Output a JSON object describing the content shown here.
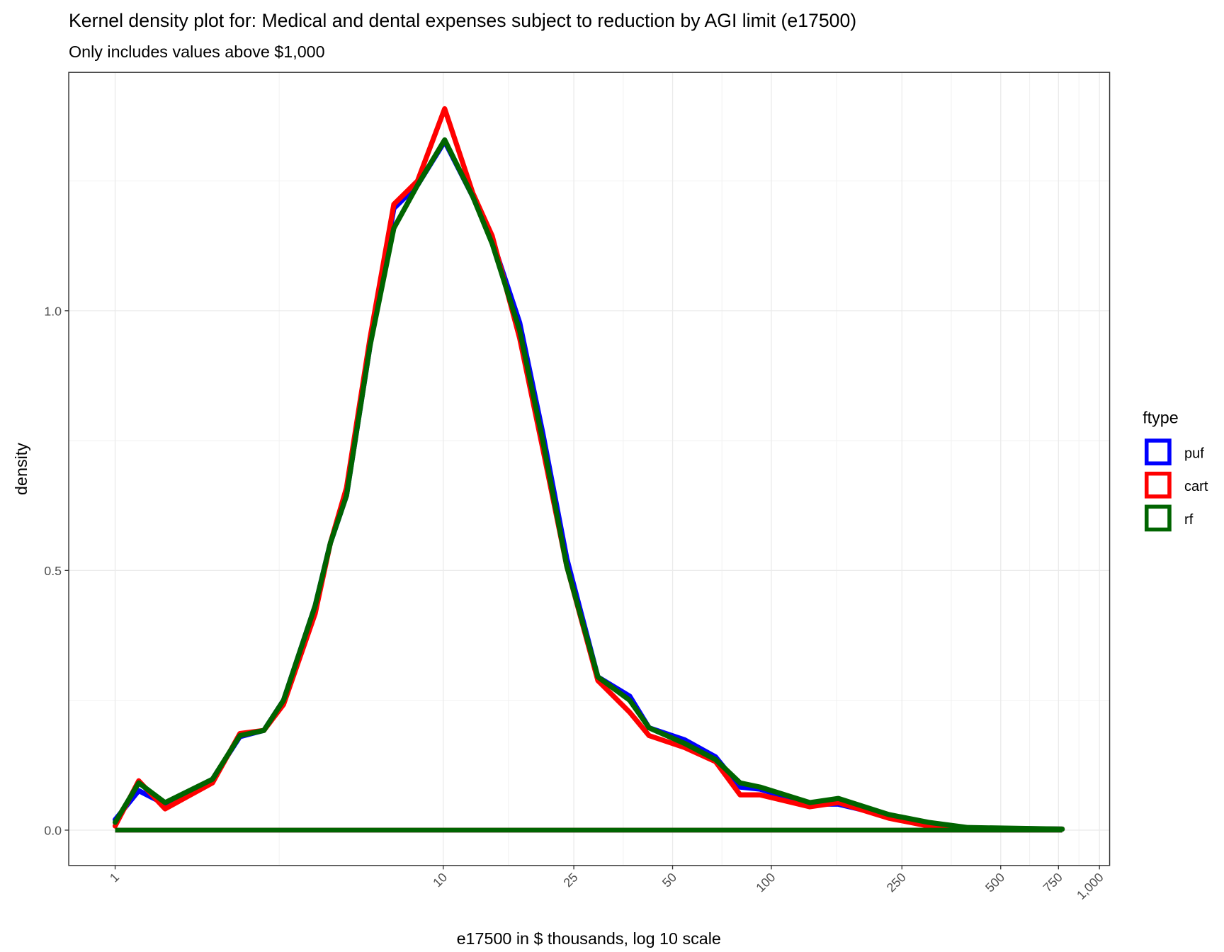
{
  "chart_data": {
    "type": "line",
    "title": "Kernel density plot for: Medical and dental expenses subject to reduction by AGI limit (e17500)",
    "subtitle": "Only includes values above $1,000",
    "x_label": "e17500 in $ thousands, log 10 scale",
    "y_label": "density",
    "x_scale": "log",
    "grid": true,
    "legend_title": "ftype",
    "legend_position": "right",
    "x": [
      1,
      1.18,
      1.42,
      1.98,
      2.4,
      2.84,
      3.26,
      4.07,
      4.53,
      5.07,
      5.98,
      7.07,
      8.35,
      10.1,
      12.3,
      14.1,
      17.1,
      20.1,
      23.8,
      29.6,
      37,
      42.4,
      54.4,
      67.6,
      80.3,
      92.3,
      131,
      160,
      228,
      301,
      397,
      770
    ],
    "series": [
      {
        "name": "puf",
        "color": "#0000ff",
        "values": [
          0.02,
          0.076,
          0.05,
          0.098,
          0.18,
          0.192,
          0.25,
          0.432,
          0.553,
          0.644,
          0.932,
          1.197,
          1.242,
          1.326,
          1.22,
          1.136,
          0.977,
          0.765,
          0.523,
          0.295,
          0.258,
          0.197,
          0.174,
          0.141,
          0.083,
          0.079,
          0.05,
          0.05,
          0.027,
          0.012,
          0.004,
          0.002
        ]
      },
      {
        "name": "cart",
        "color": "#ff0000",
        "values": [
          0.008,
          0.095,
          0.041,
          0.091,
          0.186,
          0.192,
          0.242,
          0.417,
          0.553,
          0.659,
          0.947,
          1.205,
          1.25,
          1.389,
          1.227,
          1.144,
          0.947,
          0.735,
          0.508,
          0.288,
          0.227,
          0.182,
          0.159,
          0.132,
          0.068,
          0.068,
          0.045,
          0.053,
          0.023,
          0.008,
          0.003,
          0.002
        ]
      },
      {
        "name": "rf",
        "color": "#006400",
        "values": [
          0.015,
          0.091,
          0.053,
          0.098,
          0.182,
          0.192,
          0.25,
          0.432,
          0.553,
          0.644,
          0.932,
          1.159,
          1.242,
          1.329,
          1.22,
          1.129,
          0.962,
          0.75,
          0.508,
          0.295,
          0.25,
          0.197,
          0.167,
          0.136,
          0.091,
          0.083,
          0.053,
          0.061,
          0.03,
          0.015,
          0.005,
          0.002
        ]
      }
    ],
    "xlim": [
      0.722,
      1074
    ],
    "xticks": [
      1,
      10,
      25,
      50,
      100,
      250,
      500,
      750,
      {
        "value": 1000,
        "label": "1,000"
      }
    ],
    "ylim": [
      -0.068,
      1.459
    ],
    "yticks": [
      {
        "value": 0,
        "label": "0.0"
      },
      0.5,
      {
        "value": 1,
        "label": "1.0"
      }
    ]
  }
}
